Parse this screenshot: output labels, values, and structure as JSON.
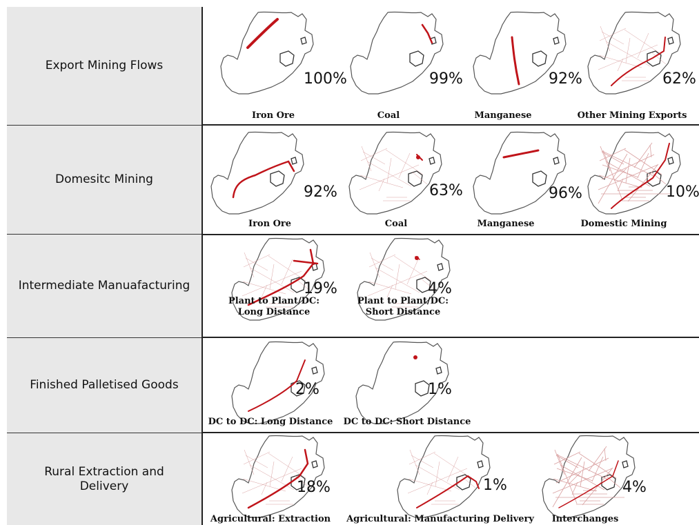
{
  "rows": [
    {
      "label": "Export Mining Flows",
      "panels": [
        {
          "pct": "100%",
          "caption": [
            "Iron Ore"
          ]
        },
        {
          "pct": "99%",
          "caption": [
            "Coal"
          ]
        },
        {
          "pct": "92%",
          "caption": [
            "Manganese"
          ]
        },
        {
          "pct": "62%",
          "caption": [
            "Other Mining Exports"
          ]
        }
      ]
    },
    {
      "label": "Domesitc Mining",
      "panels": [
        {
          "pct": "92%",
          "caption": [
            "Iron Ore"
          ]
        },
        {
          "pct": "63%",
          "caption": [
            "Coal"
          ]
        },
        {
          "pct": "96%",
          "caption": [
            "Manganese"
          ]
        },
        {
          "pct": "10%",
          "caption": [
            "Domestic Mining"
          ]
        }
      ]
    },
    {
      "label": "Intermediate Manuafacturing",
      "panels": [
        {
          "pct": "19%",
          "caption": [
            "Plant to Plant/DC:",
            "Long Distance"
          ]
        },
        {
          "pct": "4%",
          "caption": [
            "Plant to Plant/DC:",
            "Short Distance"
          ]
        }
      ]
    },
    {
      "label": "Finished Palletised Goods",
      "panels": [
        {
          "pct": "2%",
          "caption": [
            "DC to DC: Long Distance"
          ]
        },
        {
          "pct": "1%",
          "caption": [
            "DC to DC: Short Distance"
          ]
        }
      ]
    },
    {
      "label": "Rural Extraction and Delivery",
      "panels": [
        {
          "pct": "18%",
          "caption": [
            "Agricultural: Extraction"
          ]
        },
        {
          "pct": "1%",
          "caption": [
            "Agricultural: Manufacturing Delivery"
          ]
        },
        {
          "pct": "4%",
          "caption": [
            "Interchanges"
          ]
        }
      ]
    }
  ],
  "colors": {
    "route": "#c0141a",
    "network": "#d9a0a0",
    "outline": "#555555",
    "label_bg": "#e8e8e8"
  }
}
